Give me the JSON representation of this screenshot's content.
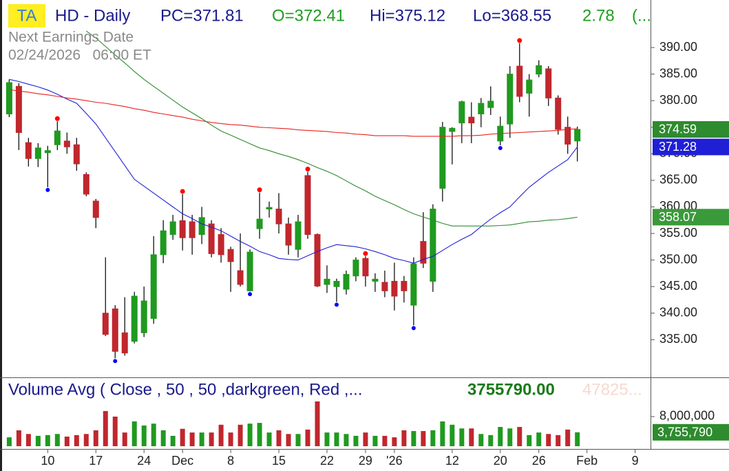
{
  "header": {
    "badge": "TA",
    "symbol": "HD - Daily",
    "prev_close": "PC=371.81",
    "open": "O=372.41",
    "high": "Hi=375.12",
    "low": "Lo=368.55",
    "change": "2.78",
    "more": "(...",
    "earnings_label": "Next Earnings Date",
    "earnings_date": "02/24/2026   06:00 ET"
  },
  "chart_data": [
    {
      "type": "candlestick",
      "open": [
        377.5,
        382.7,
        372.1,
        369.1,
        370.2,
        371.7,
        372.4,
        371.7,
        366.1,
        361.1,
        340.0,
        340.8,
        336.3,
        334.7,
        336.3,
        339.0,
        351.0,
        354.8,
        357.4,
        357.2,
        354.8,
        356.8,
        354.8,
        352.0,
        348.0,
        344.2,
        355.9,
        359.6,
        359.6,
        356.8,
        352.0,
        365.9,
        354.8,
        345.4,
        345.0,
        344.5,
        347.0,
        350.3,
        346.0,
        345.8,
        346.0,
        346.0,
        341.5,
        353.5,
        346.0,
        363.5,
        374.2,
        375.8,
        376.9,
        377.5,
        378.7,
        372.4,
        375.6,
        386.5,
        381.4,
        385.0,
        386.0,
        380.5,
        375.0,
        372.41
      ],
      "high": [
        384.0,
        383.3,
        373.0,
        372.0,
        371.5,
        376.1,
        374.0,
        373.0,
        366.5,
        361.5,
        350.5,
        341.5,
        343.0,
        344.0,
        345.0,
        354.5,
        357.5,
        358.5,
        362.4,
        358.5,
        360.0,
        357.5,
        356.0,
        352.5,
        355.0,
        352.0,
        362.7,
        361.0,
        362.6,
        358.0,
        358.5,
        366.6,
        355.0,
        349.0,
        346.5,
        348.0,
        350.5,
        350.7,
        347.5,
        348.0,
        349.5,
        347.0,
        350.5,
        359.0,
        360.5,
        376.0,
        375.0,
        380.0,
        379.7,
        380.5,
        382.7,
        377.0,
        386.5,
        390.8,
        385.0,
        387.6,
        386.5,
        381.0,
        377.0,
        375.12
      ],
      "low": [
        376.9,
        370.7,
        367.6,
        367.5,
        363.7,
        370.7,
        370.0,
        366.8,
        362.0,
        356.0,
        335.7,
        331.5,
        332.0,
        334.3,
        335.5,
        338.0,
        349.4,
        353.8,
        351.8,
        351.0,
        353.0,
        350.5,
        349.5,
        344.0,
        345.0,
        344.1,
        354.0,
        358.0,
        355.0,
        351.0,
        350.5,
        354.0,
        344.9,
        343.8,
        342.1,
        343.5,
        346.0,
        345.0,
        344.0,
        343.0,
        340.5,
        342.0,
        337.7,
        348.5,
        344.0,
        361.0,
        368.0,
        372.0,
        372.0,
        375.0,
        377.3,
        371.6,
        373.0,
        379.7,
        377.0,
        384.4,
        379.0,
        373.6,
        370.0,
        368.55
      ],
      "close": [
        383.4,
        374.0,
        369.1,
        371.1,
        370.6,
        374.3,
        371.3,
        368.1,
        362.4,
        358.0,
        336.0,
        332.8,
        332.5,
        343.2,
        342.3,
        351.0,
        355.5,
        357.2,
        354.2,
        354.2,
        358.0,
        351.2,
        351.0,
        349.7,
        345.4,
        351.5,
        357.7,
        359.9,
        356.8,
        352.8,
        357.2,
        354.8,
        345.1,
        346.4,
        346.0,
        347.3,
        350.0,
        347.0,
        346.4,
        344.2,
        343.2,
        344.2,
        349.3,
        349.4,
        359.6,
        375.0,
        374.8,
        379.8,
        375.8,
        379.5,
        379.9,
        375.2,
        385.0,
        380.8,
        383.9,
        386.6,
        380.5,
        374.6,
        371.81,
        374.59
      ],
      "up_color": "#1f9a1f",
      "down_color": "#c0272d",
      "moving_averages": [
        {
          "color": "#1f1fd6",
          "values": [
            384.0,
            383.6,
            383.1,
            382.6,
            382.0,
            381.2,
            380.3,
            379.5,
            377.6,
            375.6,
            373.0,
            370.4,
            367.8,
            365.2,
            363.9,
            362.6,
            361.3,
            360.0,
            358.7,
            357.8,
            356.8,
            356.2,
            355.5,
            354.5,
            353.5,
            352.6,
            351.6,
            351.0,
            350.3,
            350.1,
            350.0,
            350.8,
            351.6,
            352.3,
            352.9,
            352.7,
            352.5,
            352.1,
            351.6,
            351.0,
            350.3,
            349.9,
            349.4,
            350.1,
            350.7,
            351.8,
            352.9,
            353.9,
            354.8,
            356.3,
            357.7,
            358.9,
            360.0,
            361.9,
            363.7,
            365.1,
            366.5,
            367.7,
            368.9,
            371.28
          ]
        },
        {
          "color": "#e8231d",
          "values": [
            382.1,
            381.8,
            381.6,
            381.3,
            381.1,
            380.8,
            380.5,
            380.3,
            380.0,
            379.7,
            379.5,
            379.2,
            378.9,
            378.5,
            378.2,
            377.8,
            377.5,
            377.2,
            376.9,
            376.5,
            376.2,
            375.9,
            375.7,
            375.5,
            375.4,
            375.2,
            375.0,
            374.9,
            374.8,
            374.7,
            374.5,
            374.4,
            374.3,
            374.2,
            374.0,
            373.9,
            373.7,
            373.6,
            373.4,
            373.4,
            373.4,
            373.4,
            373.3,
            373.3,
            373.3,
            373.3,
            373.3,
            373.4,
            373.4,
            373.5,
            373.7,
            373.8,
            373.9,
            374.0,
            374.1,
            374.2,
            374.3,
            374.4,
            374.6,
            374.7
          ]
        },
        {
          "color": "#2e8b2e",
          "values": [
            null,
            null,
            null,
            null,
            null,
            null,
            null,
            null,
            393.1,
            391.8,
            390.2,
            388.6,
            387.1,
            385.5,
            384.0,
            382.7,
            381.4,
            380.1,
            378.8,
            377.7,
            376.6,
            375.4,
            374.3,
            373.5,
            372.7,
            371.9,
            371.1,
            370.6,
            370.0,
            369.5,
            368.9,
            368.2,
            367.4,
            366.7,
            365.9,
            364.9,
            363.9,
            363.0,
            362.0,
            361.2,
            360.4,
            359.5,
            358.7,
            358.1,
            357.5,
            356.9,
            356.4,
            356.4,
            356.4,
            356.4,
            356.4,
            356.5,
            356.6,
            356.9,
            357.2,
            357.3,
            357.5,
            357.6,
            357.8,
            358.07
          ]
        }
      ],
      "high_markers": [
        5,
        18,
        26,
        31,
        37,
        53
      ],
      "high_marker_color": "#ff0000",
      "low_markers": [
        4,
        11,
        25,
        34,
        42,
        51
      ],
      "low_marker_color": "#0000ff",
      "ylim": [
        328.3,
        398.95
      ],
      "yticks": [
        {
          "value": 390,
          "label": "390.00"
        },
        {
          "value": 385,
          "label": "385.00"
        },
        {
          "value": 380,
          "label": "380.00"
        },
        {
          "value": 375,
          "label": "375.00"
        },
        {
          "value": 370,
          "label": "370.00"
        },
        {
          "value": 365,
          "label": "365.00"
        },
        {
          "value": 360,
          "label": "360.00"
        },
        {
          "value": 355,
          "label": "355.00"
        },
        {
          "value": 350,
          "label": "350.00"
        },
        {
          "value": 345,
          "label": "345.00"
        },
        {
          "value": 340,
          "label": "340.00"
        },
        {
          "value": 335,
          "label": "335.00"
        }
      ],
      "xlim": [
        -0.6,
        66.6
      ],
      "xticks": [
        {
          "value": 4,
          "label": "10"
        },
        {
          "value": 9,
          "label": "17"
        },
        {
          "value": 14,
          "label": "24"
        },
        {
          "value": 18,
          "label": "Dec"
        },
        {
          "value": 23,
          "label": "8"
        },
        {
          "value": 28,
          "label": "15"
        },
        {
          "value": 33,
          "label": "22"
        },
        {
          "value": 37,
          "label": "29"
        },
        {
          "value": 40,
          "label": "'26"
        },
        {
          "value": 46,
          "label": "12"
        },
        {
          "value": 51,
          "label": "20"
        },
        {
          "value": 55,
          "label": "26"
        },
        {
          "value": 60,
          "label": "Feb"
        },
        {
          "value": 65,
          "label": "9"
        }
      ]
    },
    {
      "type": "volume",
      "title": "Volume Avg ( Close , 50 , 50 ,darkgreen, Red ,...",
      "value_text": "3755790.00",
      "faint_text": "47825...",
      "values": [
        2400000,
        4300000,
        3300000,
        2800000,
        3000000,
        3300000,
        2600000,
        3000000,
        3300000,
        4300000,
        9500000,
        8000000,
        3700000,
        6700000,
        5600000,
        6100000,
        4300000,
        2800000,
        4700000,
        3700000,
        3700000,
        3700000,
        5800000,
        3700000,
        5800000,
        6100000,
        6300000,
        3700000,
        4300000,
        3300000,
        3300000,
        4500000,
        12100000,
        3700000,
        3700000,
        3300000,
        2800000,
        3700000,
        2800000,
        2800000,
        2400000,
        4300000,
        4100000,
        4100000,
        4300000,
        6700000,
        5800000,
        4800000,
        4800000,
        3300000,
        3000000,
        5200000,
        4800000,
        5200000,
        3000000,
        3700000,
        3300000,
        3000000,
        4500000,
        3755790
      ],
      "last_value_label": "3,755,790",
      "ylim": [
        0,
        18600000
      ],
      "yticks": [
        {
          "value": 8000000,
          "label": "8,000,000"
        }
      ]
    }
  ]
}
